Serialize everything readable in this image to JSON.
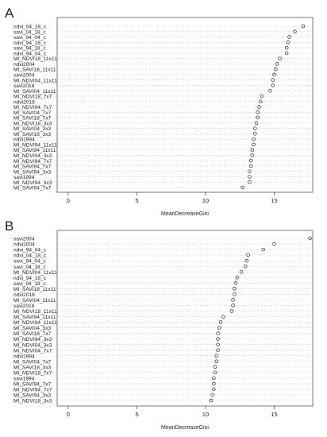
{
  "chart_data": [
    {
      "type": "scatter",
      "panel_label": "A",
      "xlabel": "MeanDecreaseGini",
      "xlim": [
        -0.8,
        17.8
      ],
      "xticks": [
        0,
        5,
        10,
        15
      ],
      "grid": true,
      "categories": [
        "ndvi_04_18_c",
        "savi_04_18_c",
        "savi_94_04_c",
        "ndvi_94_18_c",
        "savi_94_18_c",
        "ndvi_94_04_c",
        "MI_NDVI18_11x11",
        "ndvi2004",
        "MI_SAVI18_11x11",
        "savi2004",
        "MI_NDVI04_11x11",
        "savi2018",
        "MI_SAVI04_11x11",
        "MI_NDVI18_7x7",
        "ndvi2018",
        "MI_NDVI04_7x7",
        "MI_SAVI04_7x7",
        "MI_SAVI18_7x7",
        "MI_NDVI18_3x3",
        "MI_SAVI04_3x3",
        "MI_SAVI18_3x3",
        "ndvi1994",
        "MI_NDVI94_11x11",
        "MI_SAVI94_11x11",
        "MI_NDVI04_3x3",
        "MI_NDVI94_7x7",
        "MI_SAVI94_7x7",
        "MI_SAVI94_3x3",
        "savi1994",
        "MI_NDVI94_3x3",
        "MI_SAVI94_7x7"
      ],
      "values": [
        17.1,
        16.5,
        16.1,
        16.0,
        15.9,
        15.9,
        15.4,
        15.2,
        15.1,
        15.0,
        14.9,
        14.9,
        14.7,
        14.1,
        14.0,
        13.9,
        13.8,
        13.8,
        13.7,
        13.6,
        13.6,
        13.5,
        13.5,
        13.4,
        13.4,
        13.3,
        13.3,
        13.2,
        13.2,
        13.2,
        12.7
      ]
    },
    {
      "type": "scatter",
      "panel_label": "B",
      "xlabel": "MeanDecreaseGini",
      "xlim": [
        -0.8,
        17.8
      ],
      "xticks": [
        0,
        5,
        10,
        15
      ],
      "grid": true,
      "categories": [
        "savi2004",
        "ndvi2004",
        "ndvi_94_04_c",
        "ndvi_04_18_c",
        "savi_94_04_c",
        "savi_04_18_c",
        "MI_NDVI04_11x11",
        "ndvi_94_18_c",
        "savi_94_18_c",
        "MI_SAVI18_11x11",
        "ndvi2018",
        "MI_SAVI04_11x11",
        "savi2018",
        "MI_NDVI18_11x11",
        "MI_SAVI94_11x11",
        "MI_NDVI94_11x11",
        "MI_SAVI04_3x3",
        "MI_SAVI18_7x7",
        "MI_NDVI94_3x3",
        "MI_NDVI04_3x3",
        "MI_NDVI04_7x7",
        "ndvi1994",
        "MI_SAVI04_7x7",
        "MI_SAVI18_3x3",
        "MI_NDVI18_7x7",
        "savi1994",
        "MI_SAVI94_7x7",
        "MI_NDVI94_7x7",
        "MI_SAVI94_3x3",
        "MI_NDVI18_3x3"
      ],
      "values": [
        17.6,
        15.0,
        14.2,
        13.1,
        13.0,
        12.9,
        12.6,
        12.3,
        12.2,
        12.1,
        12.1,
        12.0,
        12.0,
        11.9,
        11.3,
        11.1,
        11.0,
        10.9,
        10.9,
        10.9,
        10.9,
        10.8,
        10.8,
        10.7,
        10.7,
        10.6,
        10.6,
        10.6,
        10.5,
        10.4
      ]
    }
  ]
}
